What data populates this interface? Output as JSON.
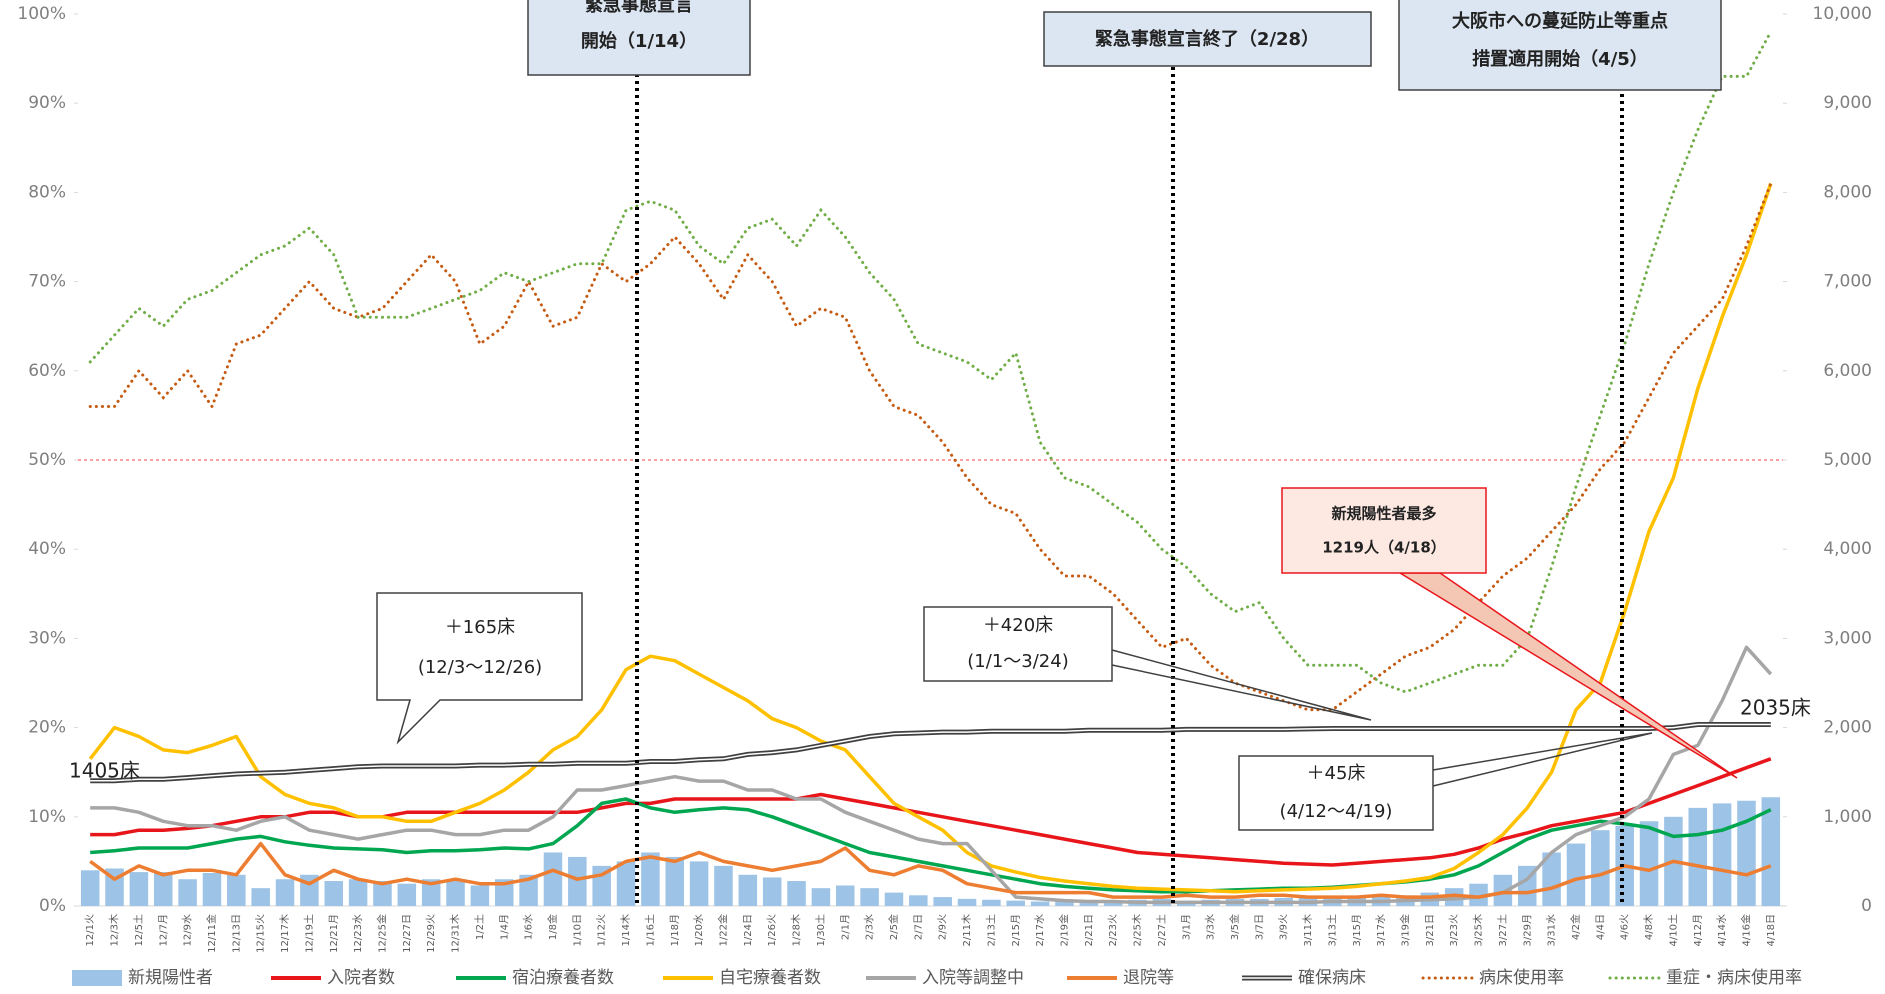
{
  "chart_data": {
    "type": "combo",
    "categories": [
      "12/1火",
      "12/3木",
      "12/5土",
      "12/7月",
      "12/9水",
      "12/11金",
      "12/13日",
      "12/15火",
      "12/17木",
      "12/19土",
      "12/21月",
      "12/23水",
      "12/25金",
      "12/27日",
      "12/29火",
      "12/31木",
      "1/2土",
      "1/4月",
      "1/6水",
      "1/8金",
      "1/10日",
      "1/12火",
      "1/14木",
      "1/16土",
      "1/18月",
      "1/20水",
      "1/22金",
      "1/24日",
      "1/26火",
      "1/28木",
      "1/30土",
      "2/1月",
      "2/3水",
      "2/5金",
      "2/7日",
      "2/9火",
      "2/11木",
      "2/13土",
      "2/15月",
      "2/17水",
      "2/19金",
      "2/21日",
      "2/23火",
      "2/25木",
      "2/27土",
      "3/1月",
      "3/3水",
      "3/5金",
      "3/7日",
      "3/9火",
      "3/11木",
      "3/13土",
      "3/15月",
      "3/17水",
      "3/19金",
      "3/21日",
      "3/23火",
      "3/25木",
      "3/27土",
      "3/29月",
      "3/31水",
      "4/2金",
      "4/4日",
      "4/6火",
      "4/8木",
      "4/10土",
      "4/12月",
      "4/14水",
      "4/16金",
      "4/18日"
    ],
    "series": [
      {
        "name": "新規陽性者",
        "type": "bar",
        "axis": "y2",
        "color": "#9dc3e6",
        "values": [
          400,
          420,
          380,
          380,
          300,
          370,
          350,
          200,
          300,
          350,
          280,
          300,
          280,
          250,
          300,
          300,
          230,
          300,
          350,
          600,
          550,
          450,
          500,
          600,
          550,
          500,
          450,
          350,
          320,
          280,
          200,
          230,
          200,
          150,
          120,
          100,
          80,
          70,
          60,
          50,
          50,
          60,
          60,
          70,
          80,
          60,
          70,
          80,
          80,
          90,
          90,
          100,
          100,
          110,
          120,
          150,
          200,
          250,
          350,
          450,
          600,
          700,
          850,
          900,
          950,
          1000,
          1100,
          1150,
          1180,
          1219
        ]
      },
      {
        "name": "入院者数",
        "type": "line",
        "axis": "y2",
        "color": "#e8161b",
        "values": [
          800,
          800,
          850,
          850,
          870,
          900,
          950,
          1000,
          1000,
          1050,
          1050,
          1000,
          1000,
          1050,
          1050,
          1050,
          1050,
          1050,
          1050,
          1050,
          1050,
          1100,
          1150,
          1150,
          1200,
          1200,
          1200,
          1200,
          1200,
          1200,
          1250,
          1200,
          1150,
          1100,
          1050,
          1000,
          950,
          900,
          850,
          800,
          750,
          700,
          650,
          600,
          580,
          560,
          540,
          520,
          500,
          480,
          470,
          460,
          480,
          500,
          520,
          540,
          580,
          650,
          750,
          820,
          900,
          950,
          1000,
          1050,
          1150,
          1250,
          1350,
          1450,
          1550,
          1650
        ]
      },
      {
        "name": "宿泊療養者数",
        "type": "line",
        "axis": "y2",
        "color": "#00a650",
        "values": [
          600,
          620,
          650,
          650,
          650,
          700,
          750,
          780,
          720,
          680,
          650,
          640,
          630,
          600,
          620,
          620,
          630,
          650,
          640,
          700,
          900,
          1150,
          1200,
          1100,
          1050,
          1080,
          1100,
          1080,
          1000,
          900,
          800,
          700,
          600,
          550,
          500,
          450,
          400,
          350,
          300,
          250,
          220,
          200,
          180,
          170,
          160,
          160,
          170,
          180,
          190,
          200,
          200,
          210,
          230,
          250,
          270,
          300,
          350,
          450,
          600,
          750,
          850,
          900,
          950,
          920,
          880,
          780,
          800,
          850,
          950,
          1080
        ]
      },
      {
        "name": "自宅療養者数",
        "type": "line",
        "axis": "y2",
        "color": "#ffc000",
        "values": [
          1650,
          2000,
          1900,
          1750,
          1720,
          1800,
          1900,
          1450,
          1250,
          1150,
          1100,
          1000,
          1000,
          950,
          950,
          1050,
          1150,
          1300,
          1500,
          1750,
          1900,
          2200,
          2650,
          2800,
          2750,
          2600,
          2450,
          2300,
          2100,
          2000,
          1850,
          1750,
          1450,
          1150,
          1000,
          850,
          600,
          450,
          380,
          320,
          280,
          250,
          220,
          200,
          190,
          180,
          170,
          160,
          170,
          180,
          190,
          200,
          220,
          250,
          280,
          320,
          420,
          600,
          800,
          1100,
          1500,
          2200,
          2500,
          3300,
          4200,
          4800,
          5800,
          6600,
          7300,
          8100
        ]
      },
      {
        "name": "入院等調整中",
        "type": "line",
        "axis": "y2",
        "color": "#a6a6a6",
        "values": [
          1100,
          1100,
          1050,
          950,
          900,
          900,
          850,
          950,
          1000,
          850,
          800,
          750,
          800,
          850,
          850,
          800,
          800,
          850,
          850,
          1000,
          1300,
          1300,
          1350,
          1400,
          1450,
          1400,
          1400,
          1300,
          1300,
          1200,
          1200,
          1050,
          950,
          850,
          750,
          700,
          700,
          400,
          100,
          80,
          60,
          50,
          50,
          40,
          40,
          40,
          40,
          40,
          40,
          40,
          40,
          50,
          50,
          50,
          60,
          70,
          80,
          100,
          150,
          300,
          600,
          800,
          900,
          1000,
          1200,
          1700,
          1800,
          2300,
          2900,
          2600
        ]
      },
      {
        "name": "退院等",
        "type": "line",
        "axis": "y2",
        "color": "#ed7d31",
        "values": [
          500,
          300,
          450,
          350,
          400,
          400,
          350,
          700,
          350,
          250,
          400,
          300,
          250,
          300,
          250,
          300,
          250,
          250,
          300,
          400,
          300,
          350,
          500,
          550,
          500,
          600,
          500,
          450,
          400,
          450,
          500,
          650,
          400,
          350,
          450,
          400,
          250,
          200,
          150,
          150,
          150,
          150,
          100,
          100,
          100,
          120,
          100,
          100,
          120,
          120,
          100,
          100,
          100,
          120,
          100,
          100,
          120,
          100,
          150,
          150,
          200,
          300,
          350,
          450,
          400,
          500,
          450,
          400,
          350,
          450
        ]
      },
      {
        "name": "確保病床",
        "type": "double",
        "axis": "y2",
        "color": "#404040",
        "values": [
          1405,
          1405,
          1420,
          1420,
          1440,
          1460,
          1480,
          1490,
          1500,
          1520,
          1540,
          1560,
          1570,
          1570,
          1570,
          1570,
          1580,
          1580,
          1590,
          1590,
          1600,
          1600,
          1600,
          1620,
          1620,
          1640,
          1650,
          1700,
          1720,
          1750,
          1800,
          1850,
          1900,
          1930,
          1940,
          1950,
          1950,
          1960,
          1960,
          1960,
          1960,
          1970,
          1970,
          1970,
          1970,
          1980,
          1980,
          1980,
          1980,
          1980,
          1985,
          1990,
          1990,
          1990,
          1990,
          1990,
          1990,
          1990,
          1990,
          1990,
          1990,
          1990,
          1990,
          1990,
          1990,
          2000,
          2035,
          2035,
          2035,
          2035
        ]
      },
      {
        "name": "病床使用率",
        "type": "dotted",
        "color": "#c55a11",
        "values": [
          56,
          56,
          60,
          57,
          60,
          56,
          63,
          64,
          67,
          70,
          67,
          66,
          67,
          70,
          73,
          70,
          63,
          65,
          70,
          65,
          66,
          72,
          70,
          72,
          75,
          72,
          68,
          73,
          70,
          65,
          67,
          66,
          60,
          56,
          55,
          52,
          48,
          45,
          44,
          40,
          37,
          37,
          35,
          32,
          29,
          30,
          27,
          25,
          24,
          23,
          22,
          22,
          24,
          26,
          28,
          29,
          31,
          34,
          37,
          39,
          42,
          45,
          49,
          52,
          57,
          62,
          65,
          68,
          74,
          81
        ]
      },
      {
        "name": "重症・病床使用率",
        "type": "dotted",
        "color": "#70ad47",
        "values": [
          61,
          64,
          67,
          65,
          68,
          69,
          71,
          73,
          74,
          76,
          73,
          66,
          66,
          66,
          67,
          68,
          69,
          71,
          70,
          71,
          72,
          72,
          78,
          79,
          78,
          74,
          72,
          76,
          77,
          74,
          78,
          75,
          71,
          68,
          63,
          62,
          61,
          59,
          62,
          52,
          48,
          47,
          45,
          43,
          40,
          38,
          35,
          33,
          34,
          30,
          27,
          27,
          27,
          25,
          24,
          25,
          26,
          27,
          27,
          30,
          38,
          47,
          55,
          63,
          72,
          80,
          87,
          93,
          93,
          98
        ]
      }
    ],
    "ylim": [
      0,
      100
    ],
    "yticks": [
      {
        "value": 0,
        "label": "0%"
      },
      {
        "value": 10,
        "label": "10%"
      },
      {
        "value": 20,
        "label": "20%"
      },
      {
        "value": 30,
        "label": "30%"
      },
      {
        "value": 40,
        "label": "40%"
      },
      {
        "value": 50,
        "label": "50%"
      },
      {
        "value": 60,
        "label": "60%"
      },
      {
        "value": 70,
        "label": "70%"
      },
      {
        "value": 80,
        "label": "80%"
      },
      {
        "value": 90,
        "label": "90%"
      },
      {
        "value": 100,
        "label": "100%"
      }
    ],
    "y2lim": [
      0,
      10000
    ],
    "y2ticks": [
      0,
      {
        "value": 1000,
        "label": "1,000"
      },
      {
        "value": 2000,
        "label": "2,000"
      },
      {
        "value": 3000,
        "label": "3,000"
      },
      {
        "value": 4000,
        "label": "4,000"
      },
      {
        "value": 5000,
        "label": "5,000"
      },
      {
        "value": 6000,
        "label": "6,000"
      },
      {
        "value": 7000,
        "label": "7,000"
      },
      {
        "value": 8000,
        "label": "8,000"
      },
      {
        "value": 9000,
        "label": "9,000"
      },
      {
        "value": 10000,
        "label": "10,000"
      }
    ],
    "hline": {
      "value": 50,
      "color": "#ff8080"
    },
    "legend": "bottom",
    "annotations": [
      {
        "lines": [
          "緊急事態宣言",
          "開始（1/14）"
        ]
      },
      {
        "lines": [
          "緊急事態宣言終了（2/28）"
        ]
      },
      {
        "lines": [
          "大阪市への蔓延防止等重点",
          "措置適用開始（4/5）"
        ]
      },
      {
        "lines": [
          "新規陽性者最多",
          "1219人（4/18）"
        ]
      },
      {
        "lines": [
          "＋165床",
          "(12/3～12/26)"
        ]
      },
      {
        "lines": [
          "＋420床",
          "(1/1～3/24)"
        ]
      },
      {
        "lines": [
          "＋45床",
          "(4/12～4/19)"
        ]
      },
      {
        "lines": [
          "1405床"
        ]
      },
      {
        "lines": [
          "2035床"
        ]
      }
    ]
  }
}
